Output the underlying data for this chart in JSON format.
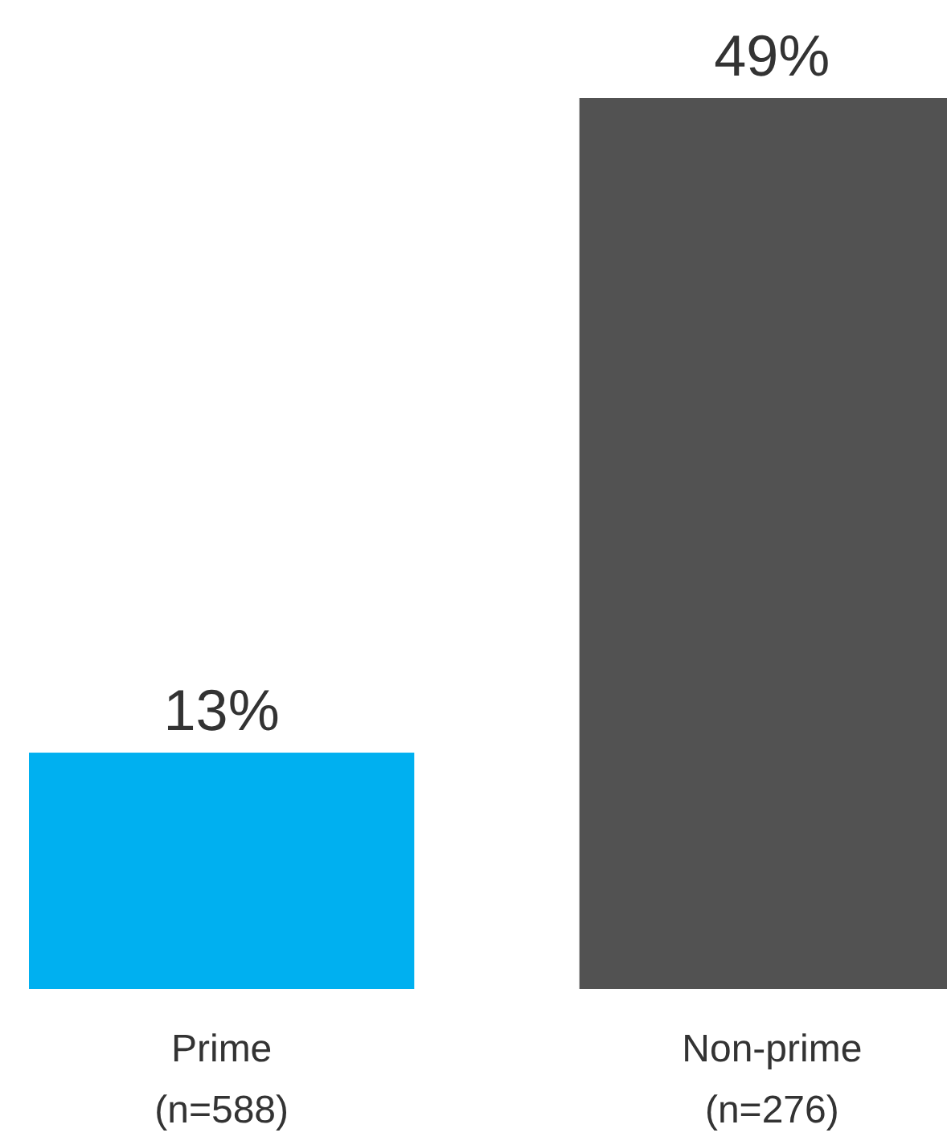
{
  "chart_data": {
    "type": "bar",
    "categories": [
      "Prime\n(n=588)",
      "Non-prime\n(n=276)"
    ],
    "values": [
      13,
      49
    ],
    "colors": [
      "#00b0f0",
      "#525252"
    ],
    "value_labels": [
      "13%",
      "49%"
    ]
  }
}
